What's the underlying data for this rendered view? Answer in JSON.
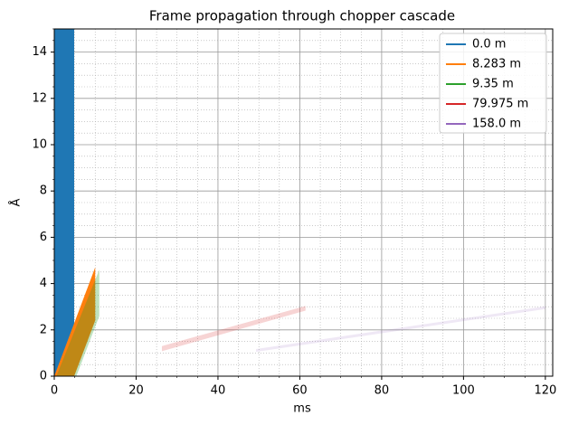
{
  "chart_data": {
    "type": "polygon",
    "title": "Frame propagation through chopper cascade",
    "x_label": "ms",
    "y_label": "Å",
    "xlim": [
      0,
      121.8
    ],
    "ylim": [
      0,
      15
    ],
    "xticks": [
      0,
      20,
      40,
      60,
      80,
      100,
      120
    ],
    "yticks": [
      0,
      2,
      4,
      6,
      8,
      10,
      12,
      14
    ],
    "grid": true,
    "minor_grid": true,
    "minor_divisions": 4,
    "legend": "upper right",
    "series": [
      {
        "name": "0.0 m",
        "color": "#1f77b4",
        "alpha": 1,
        "x": [
          0,
          4.86,
          4.86,
          0
        ],
        "values": [
          0,
          0,
          15,
          15
        ]
      },
      {
        "name": "8.283 m",
        "color": "#ff7f0e",
        "alpha": 1,
        "x": [
          0,
          4.86,
          10,
          10
        ],
        "values": [
          0,
          0,
          2.4,
          4.7
        ]
      },
      {
        "name": "9.35 m",
        "color": "#2ca02c",
        "alpha": 0.3,
        "x": [
          0.5,
          5.4,
          11,
          11
        ],
        "values": [
          0,
          0,
          2.6,
          4.6
        ]
      },
      {
        "name": "79.975 m",
        "color": "#d62728",
        "alpha": 0.2,
        "x": [
          26.3,
          61.4,
          61.4,
          26.3
        ],
        "values": [
          1.08,
          2.83,
          3.03,
          1.3
        ]
      },
      {
        "name": "158.0 m",
        "color": "#9467bd",
        "alpha": 0.15,
        "x": [
          49.3,
          120,
          120,
          49.3
        ],
        "values": [
          1.05,
          2.9,
          3.02,
          1.17
        ]
      }
    ]
  }
}
